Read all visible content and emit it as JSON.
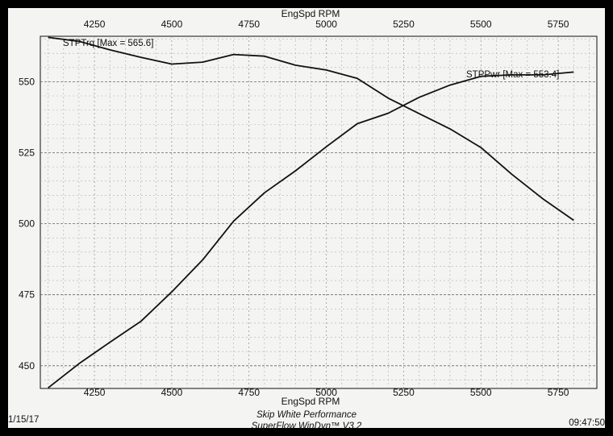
{
  "chart_data": {
    "type": "line",
    "x_axis_title_top": "EngSpd RPM",
    "x_axis_title_bottom": "EngSpd RPM",
    "xlim": [
      4075,
      5875
    ],
    "ylim": [
      442,
      566
    ],
    "x_ticks": [
      4250,
      4500,
      4750,
      5000,
      5250,
      5500,
      5750
    ],
    "y_ticks": [
      450,
      475,
      500,
      525,
      550
    ],
    "grid": true,
    "series": [
      {
        "name": "STPTrq [Max = 565.6]",
        "x": [
          4100,
          4200,
          4300,
          4400,
          4500,
          4600,
          4700,
          4800,
          4900,
          5000,
          5100,
          5200,
          5300,
          5400,
          5500,
          5600,
          5700,
          5800
        ],
        "y": [
          565.6,
          564.2,
          561.2,
          558.6,
          556.2,
          556.9,
          559.6,
          559.0,
          555.8,
          554.1,
          551.2,
          544.2,
          538.8,
          533.4,
          526.8,
          517.4,
          508.8,
          501.2
        ]
      },
      {
        "name": "STPPwr [Max = 553.4]",
        "x": [
          4100,
          4200,
          4300,
          4400,
          4500,
          4600,
          4700,
          4800,
          4900,
          5000,
          5100,
          5200,
          5300,
          5400,
          5500,
          5600,
          5700,
          5800
        ],
        "y": [
          442.2,
          450.7,
          458.3,
          465.6,
          476.0,
          487.3,
          500.9,
          510.9,
          518.6,
          527.1,
          535.2,
          538.9,
          544.5,
          548.8,
          551.9,
          552.4,
          552.4,
          553.4
        ]
      }
    ]
  },
  "footer": {
    "date": "1/15/17",
    "company": "Skip White Performance",
    "software": "SuperFlow WinDyn™ V3.2",
    "time": "09:47:50"
  }
}
